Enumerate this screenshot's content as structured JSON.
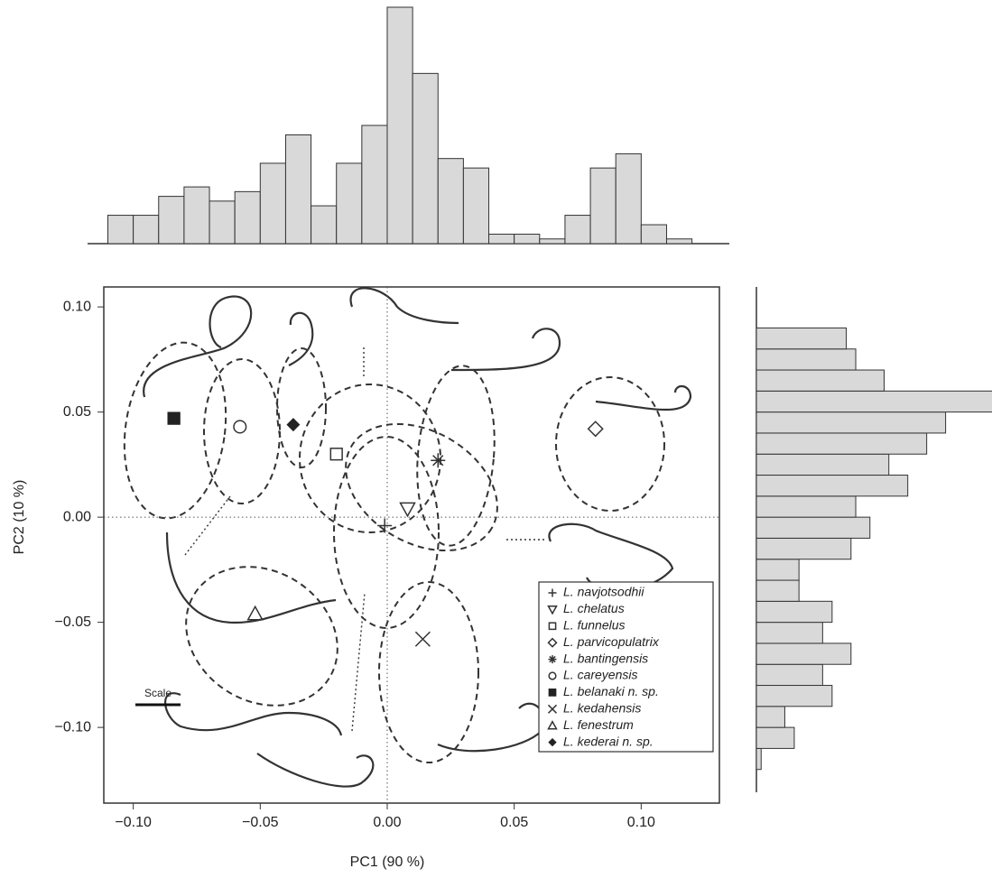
{
  "chart_data": [
    {
      "type": "scatter",
      "xlabel": "PC1 (90 %)",
      "ylabel": "PC2 (10 %)",
      "xlim": [
        -0.1116,
        0.1308
      ],
      "ylim": [
        -0.136,
        0.1095
      ],
      "xticks": [
        {
          "value": -0.1,
          "label": "−0.10"
        },
        {
          "value": -0.05,
          "label": "−0.05"
        },
        {
          "value": 0,
          "label": "0.00"
        },
        {
          "value": 0.05,
          "label": "0.05"
        },
        {
          "value": 0.1,
          "label": "0.10"
        }
      ],
      "yticks": [
        {
          "value": -0.1,
          "label": "−0.10"
        },
        {
          "value": -0.05,
          "label": "−0.05"
        },
        {
          "value": 0,
          "label": "0.00"
        },
        {
          "value": 0.05,
          "label": "0.05"
        },
        {
          "value": 0.1,
          "label": "0.10"
        }
      ],
      "legend": "lower right",
      "scale_label": "Scale",
      "series": [
        {
          "name": "L. navjotsodhii",
          "marker": "plus",
          "color": "#333333",
          "x": [
            -0.001
          ],
          "y": [
            -0.004
          ]
        },
        {
          "name": "L. chelatus",
          "marker": "triangle-down",
          "color": "#333333",
          "x": [
            0.008
          ],
          "y": [
            0.004
          ]
        },
        {
          "name": "L. funnelus",
          "marker": "square",
          "color": "#333333",
          "x": [
            -0.02
          ],
          "y": [
            0.03
          ]
        },
        {
          "name": "L. parvicopulatrix",
          "marker": "diamond",
          "color": "#333333",
          "x": [
            0.082
          ],
          "y": [
            0.042
          ]
        },
        {
          "name": "L. bantingensis",
          "marker": "asterisk",
          "color": "#333333",
          "x": [
            0.02
          ],
          "y": [
            0.027
          ]
        },
        {
          "name": "L. careyensis",
          "marker": "circle",
          "color": "#333333",
          "x": [
            -0.058
          ],
          "y": [
            0.043
          ]
        },
        {
          "name": "L. belanaki n. sp.",
          "marker": "square-filled",
          "color": "#222222",
          "x": [
            -0.084
          ],
          "y": [
            0.047
          ]
        },
        {
          "name": "L. kedahensis",
          "marker": "x",
          "color": "#333333",
          "x": [
            0.014
          ],
          "y": [
            -0.058
          ]
        },
        {
          "name": "L. fenestrum",
          "marker": "triangle",
          "color": "#333333",
          "x": [
            -0.052
          ],
          "y": [
            -0.046
          ]
        },
        {
          "name": "L. kederai n. sp.",
          "marker": "diamond-filled",
          "color": "#222222",
          "x": [
            -0.037
          ],
          "y": [
            0.044
          ]
        }
      ]
    },
    {
      "type": "histogram",
      "orientation": "vertical",
      "color": "#d9d9d9",
      "bins": [
        -0.11,
        -0.1,
        -0.09,
        -0.08,
        -0.07,
        -0.06,
        -0.05,
        -0.04,
        -0.03,
        -0.02,
        -0.01,
        0,
        0.01,
        0.02,
        0.03,
        0.04,
        0.05,
        0.06,
        0.07,
        0.08,
        0.09,
        0.1,
        0.11,
        0.12
      ],
      "values": [
        6,
        6,
        10,
        12,
        9,
        11,
        17,
        23,
        8,
        17,
        25,
        50,
        36,
        18,
        16,
        2,
        2,
        1,
        6,
        16,
        19,
        4,
        1
      ]
    },
    {
      "type": "histogram",
      "orientation": "horizontal",
      "color": "#d9d9d9",
      "bins": [
        -0.12,
        -0.11,
        -0.1,
        -0.09,
        -0.08,
        -0.07,
        -0.06,
        -0.05,
        -0.04,
        -0.03,
        -0.02,
        -0.01,
        0,
        0.01,
        0.02,
        0.03,
        0.04,
        0.05,
        0.06,
        0.07,
        0.08,
        0.09
      ],
      "values": [
        1,
        8,
        6,
        16,
        14,
        20,
        14,
        16,
        9,
        9,
        20,
        24,
        21,
        32,
        28,
        36,
        40,
        50,
        27,
        21,
        19
      ]
    }
  ]
}
